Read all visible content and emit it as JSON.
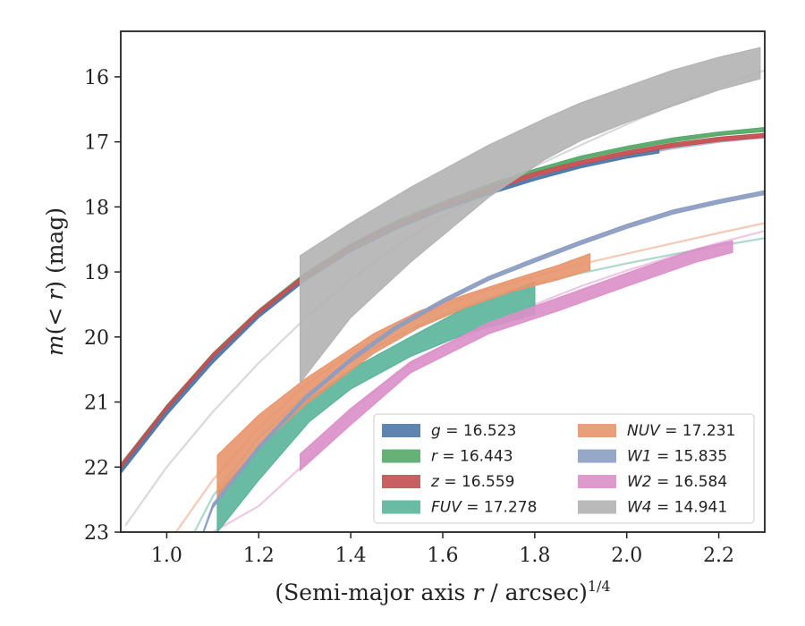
{
  "chart_data": {
    "type": "area",
    "xlabel": "(Semi-major axis r / arcsec)^1/4",
    "ylabel": "m(< r) (mag)",
    "xlim": [
      0.9,
      2.3
    ],
    "ylim": [
      23.0,
      15.3
    ],
    "y_inverted": true,
    "grid": false,
    "legend_location": "lower-right",
    "legend_columns": 2,
    "x_ticks": [
      1.0,
      1.2,
      1.4,
      1.6,
      1.8,
      2.0,
      2.2
    ],
    "x_tick_labels": [
      "1.0",
      "1.2",
      "1.4",
      "1.6",
      "1.8",
      "2.0",
      "2.2"
    ],
    "y_ticks": [
      16,
      17,
      18,
      19,
      20,
      21,
      22,
      23
    ],
    "y_tick_labels": [
      "16",
      "17",
      "18",
      "19",
      "20",
      "21",
      "22",
      "23"
    ],
    "series": [
      {
        "name": "g = 16.523",
        "legend_var": "g",
        "legend_val": "16.523",
        "color": "#4c78a8",
        "model_x": [
          0.9,
          1.0,
          1.1,
          1.2,
          1.3,
          1.4,
          1.5,
          1.6,
          1.7,
          1.8,
          1.9,
          2.0,
          2.1,
          2.2,
          2.3
        ],
        "model_y": [
          22.08,
          21.18,
          20.38,
          19.69,
          19.13,
          18.68,
          18.33,
          18.04,
          17.8,
          17.58,
          17.38,
          17.23,
          17.1,
          17.0,
          16.93
        ],
        "x": [
          0.9,
          1.0,
          1.1,
          1.2,
          1.3,
          1.4,
          1.5,
          1.6,
          1.7,
          1.8,
          1.9,
          2.0,
          2.07
        ],
        "y_low": [
          22.1,
          21.2,
          20.4,
          19.7,
          19.14,
          18.69,
          18.34,
          18.05,
          17.81,
          17.59,
          17.4,
          17.25,
          17.17
        ],
        "y_high": [
          22.04,
          21.14,
          20.34,
          19.66,
          19.1,
          18.65,
          18.3,
          18.02,
          17.77,
          17.55,
          17.36,
          17.2,
          17.12
        ]
      },
      {
        "name": "r = 16.443",
        "legend_var": "r",
        "legend_val": "16.443",
        "color": "#55a868",
        "model_x": [
          0.9,
          1.0,
          1.1,
          1.2,
          1.3,
          1.4,
          1.5,
          1.6,
          1.7,
          1.8,
          1.9,
          2.0,
          2.1,
          2.2,
          2.3
        ],
        "model_y": [
          21.98,
          21.08,
          20.28,
          19.61,
          19.05,
          18.6,
          18.24,
          17.95,
          17.68,
          17.45,
          17.25,
          17.1,
          16.97,
          16.88,
          16.82
        ],
        "x": [
          0.9,
          1.0,
          1.1,
          1.2,
          1.3,
          1.4,
          1.5,
          1.6,
          1.7,
          1.8,
          1.9,
          2.0,
          2.1,
          2.2,
          2.3
        ],
        "y_low": [
          22.0,
          21.1,
          20.3,
          19.63,
          19.07,
          18.62,
          18.26,
          17.97,
          17.7,
          17.47,
          17.27,
          17.12,
          17.0,
          16.9,
          16.84
        ],
        "y_high": [
          21.95,
          21.05,
          20.25,
          19.58,
          19.02,
          18.57,
          18.21,
          17.92,
          17.65,
          17.42,
          17.22,
          17.07,
          16.94,
          16.85,
          16.78
        ]
      },
      {
        "name": "z = 16.559",
        "legend_var": "z",
        "legend_val": "16.559",
        "color": "#c44e52",
        "model_x": [
          0.9,
          1.0,
          1.1,
          1.2,
          1.3,
          1.4,
          1.5,
          1.6,
          1.7,
          1.8,
          1.9,
          2.0,
          2.1,
          2.2,
          2.3
        ],
        "model_y": [
          21.99,
          21.09,
          20.29,
          19.62,
          19.07,
          18.62,
          18.27,
          17.98,
          17.73,
          17.5,
          17.32,
          17.17,
          17.05,
          16.96,
          16.9
        ],
        "x": [
          0.9,
          1.0,
          1.1,
          1.2,
          1.3,
          1.4,
          1.5,
          1.6,
          1.7,
          1.8,
          1.9,
          2.0,
          2.1,
          2.2,
          2.3
        ],
        "y_low": [
          22.02,
          21.12,
          20.32,
          19.65,
          19.1,
          18.65,
          18.3,
          18.01,
          17.76,
          17.53,
          17.35,
          17.2,
          17.08,
          16.99,
          16.93
        ],
        "y_high": [
          21.96,
          21.06,
          20.26,
          19.59,
          19.04,
          18.59,
          18.24,
          17.95,
          17.7,
          17.47,
          17.29,
          17.14,
          17.02,
          16.93,
          16.87
        ]
      },
      {
        "name": "FUV = 17.278",
        "legend_var": "FUV",
        "legend_val": "17.278",
        "color": "#59b49a",
        "model_x": [
          1.06,
          1.1,
          1.2,
          1.3,
          1.4,
          1.5,
          1.6,
          1.7,
          1.8,
          1.9,
          2.0,
          2.1,
          2.2,
          2.3
        ],
        "model_y": [
          23.0,
          22.45,
          21.55,
          20.9,
          20.38,
          19.98,
          19.66,
          19.4,
          19.2,
          19.02,
          18.87,
          18.73,
          18.6,
          18.48
        ],
        "x": [
          1.11,
          1.2,
          1.31,
          1.4,
          1.53,
          1.65,
          1.8
        ],
        "y_low": [
          23.0,
          22.2,
          21.3,
          20.8,
          20.3,
          19.95,
          19.65
        ],
        "y_high": [
          22.4,
          21.7,
          20.95,
          20.5,
          20.0,
          19.55,
          19.15
        ]
      },
      {
        "name": "NUV = 17.231",
        "legend_var": "NUV",
        "legend_val": "17.231",
        "color": "#e8956d",
        "model_x": [
          1.02,
          1.1,
          1.2,
          1.3,
          1.4,
          1.5,
          1.6,
          1.7,
          1.8,
          1.9,
          2.0,
          2.1,
          2.2,
          2.3
        ],
        "model_y": [
          23.0,
          22.2,
          21.4,
          20.75,
          20.25,
          19.85,
          19.53,
          19.27,
          19.07,
          18.88,
          18.72,
          18.56,
          18.4,
          18.25
        ],
        "x": [
          1.11,
          1.2,
          1.3,
          1.45,
          1.55,
          1.65,
          1.75,
          1.85,
          1.92
        ],
        "y_low": [
          22.5,
          21.7,
          21.05,
          20.25,
          19.85,
          19.55,
          19.3,
          19.12,
          18.97
        ],
        "y_high": [
          21.82,
          21.2,
          20.65,
          19.95,
          19.6,
          19.35,
          19.12,
          18.9,
          18.72
        ]
      },
      {
        "name": "W1 = 15.835",
        "legend_var": "W1",
        "legend_val": "15.835",
        "color": "#8c9dc2",
        "model_x": [
          1.08,
          1.1,
          1.2,
          1.3,
          1.4,
          1.5,
          1.6,
          1.7,
          1.8,
          1.9,
          2.0,
          2.1,
          2.2,
          2.3
        ],
        "model_y": [
          23.0,
          22.6,
          21.7,
          20.95,
          20.35,
          19.85,
          19.45,
          19.1,
          18.82,
          18.55,
          18.3,
          18.08,
          17.92,
          17.78
        ],
        "x": [
          1.08,
          1.1,
          1.2,
          1.3,
          1.4,
          1.5,
          1.6,
          1.7,
          1.8,
          1.9,
          2.0,
          2.1,
          2.2,
          2.3
        ],
        "y_low": [
          23.0,
          22.63,
          21.73,
          20.98,
          20.38,
          19.88,
          19.48,
          19.13,
          18.85,
          18.58,
          18.33,
          18.11,
          17.95,
          17.81
        ],
        "y_high": [
          22.97,
          22.57,
          21.67,
          20.92,
          20.32,
          19.82,
          19.42,
          19.07,
          18.79,
          18.52,
          18.27,
          18.05,
          17.89,
          17.75
        ]
      },
      {
        "name": "W2 = 16.584",
        "legend_var": "W2",
        "legend_val": "16.584",
        "color": "#dc8fc8",
        "model_x": [
          1.1,
          1.2,
          1.3,
          1.4,
          1.5,
          1.6,
          1.7,
          1.8,
          1.9,
          2.0,
          2.1,
          2.2,
          2.3
        ],
        "model_y": [
          23.0,
          22.6,
          21.95,
          21.15,
          20.55,
          20.15,
          19.82,
          19.5,
          19.22,
          18.98,
          18.76,
          18.55,
          18.37
        ],
        "x": [
          1.29,
          1.4,
          1.53,
          1.7,
          1.85,
          2.0,
          2.15,
          2.23
        ],
        "y_low": [
          22.05,
          21.35,
          20.55,
          19.95,
          19.6,
          19.22,
          18.85,
          18.7
        ],
        "y_high": [
          21.8,
          21.1,
          20.38,
          19.78,
          19.4,
          19.02,
          18.65,
          18.52
        ]
      },
      {
        "name": "W4 = 14.941",
        "legend_var": "W4",
        "legend_val": "14.941",
        "color": "#b3b3b3",
        "model_x": [
          0.91,
          1.0,
          1.1,
          1.2,
          1.3,
          1.4,
          1.5,
          1.6,
          1.7,
          1.8,
          1.9,
          2.0,
          2.1,
          2.2,
          2.3
        ],
        "model_y": [
          22.9,
          22.0,
          21.15,
          20.4,
          19.72,
          19.12,
          18.6,
          18.15,
          17.75,
          17.38,
          17.05,
          16.73,
          16.43,
          16.15,
          15.9
        ],
        "x": [
          1.29,
          1.4,
          1.53,
          1.7,
          1.82,
          1.9,
          2.0,
          2.1,
          2.2,
          2.29
        ],
        "y_low": [
          20.7,
          19.7,
          18.85,
          17.85,
          17.28,
          16.98,
          16.7,
          16.45,
          16.2,
          16.03
        ],
        "y_high": [
          18.75,
          18.25,
          17.7,
          17.05,
          16.65,
          16.4,
          16.15,
          15.9,
          15.7,
          15.55
        ]
      }
    ]
  }
}
